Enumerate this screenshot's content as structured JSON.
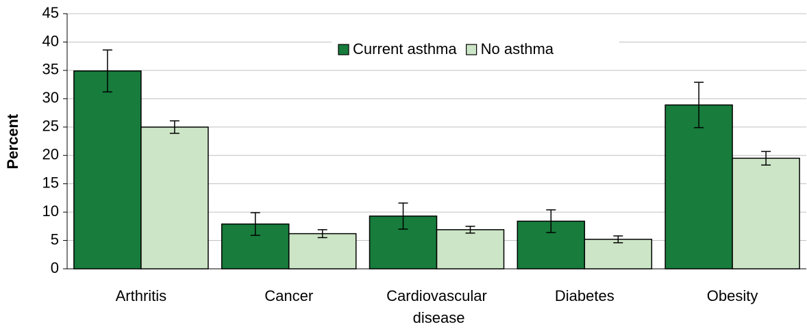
{
  "chart_data": {
    "type": "bar",
    "y_label": "Percent",
    "categories": [
      "Arthritis",
      "Cancer",
      "Cardiovascular disease",
      "Diabetes",
      "Obesity"
    ],
    "series": [
      {
        "name": "Current asthma",
        "color": "#177c3c",
        "values": [
          34.9,
          7.9,
          9.3,
          8.4,
          28.9
        ],
        "errors": [
          3.7,
          2.0,
          2.3,
          2.0,
          4.0
        ]
      },
      {
        "name": "No asthma",
        "color": "#cce5c6",
        "values": [
          25.0,
          6.2,
          6.9,
          5.2,
          19.5
        ],
        "errors": [
          1.1,
          0.7,
          0.6,
          0.6,
          1.2
        ]
      }
    ],
    "ylim": [
      0,
      45
    ],
    "yticks": [
      0,
      5,
      10,
      15,
      20,
      25,
      30,
      35,
      40,
      45
    ],
    "grid": true,
    "legend": "top"
  }
}
